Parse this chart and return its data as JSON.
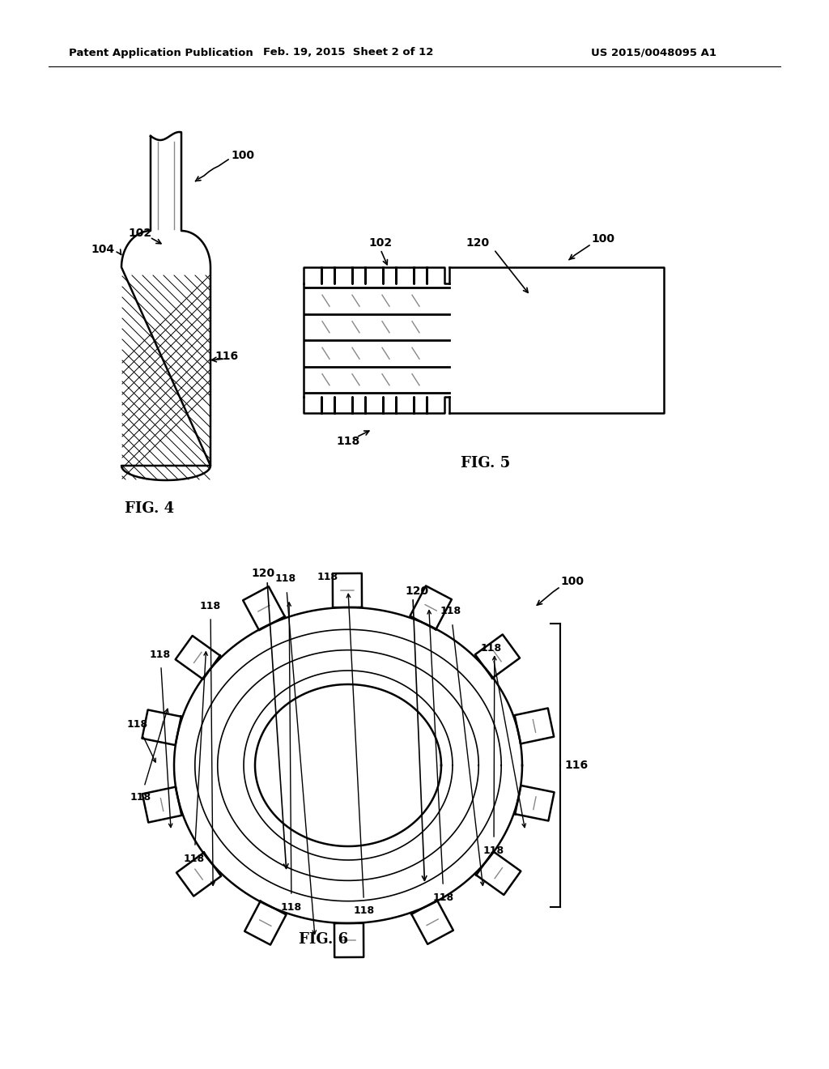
{
  "header_left": "Patent Application Publication",
  "header_mid": "Feb. 19, 2015  Sheet 2 of 12",
  "header_right": "US 2015/0048095 A1",
  "fig4_label": "FIG. 4",
  "fig5_label": "FIG. 5",
  "fig6_label": "FIG. 6",
  "background_color": "#ffffff",
  "line_color": "#000000"
}
